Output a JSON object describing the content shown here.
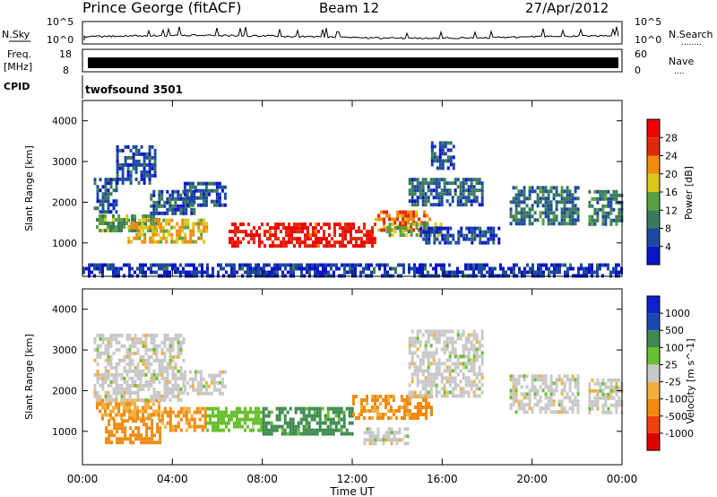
{
  "header": {
    "station": "Prince George (fitACF)",
    "beam": "Beam 12",
    "date": "27/Apr/2012"
  },
  "panels": {
    "nsky": {
      "label": "N.Sky",
      "ticks": [
        "10^5",
        "10^0"
      ],
      "right_ticks": [
        "10^5",
        "10^0"
      ],
      "right_label": "N.Search",
      "right_label_marker": "........"
    },
    "freq": {
      "label_top": "Freq.",
      "label_bottom": "[MHz]",
      "ticks": [
        "18",
        "8"
      ],
      "right_ticks": [
        "60",
        "0"
      ],
      "right_label": "Nave",
      "right_label_marker": "...."
    },
    "cpid": {
      "label": "CPID",
      "value": "twofsound 3501"
    }
  },
  "chart_data": [
    {
      "type": "heatmap",
      "quantity": "Power",
      "ylabel": "Slant Range [km]",
      "yticks": [
        1000,
        2000,
        3000,
        4000
      ],
      "ylim": [
        180,
        4500
      ],
      "colorbar": {
        "label": "Power [dB]",
        "ticks": [
          "4",
          "8",
          "12",
          "16",
          "20",
          "24",
          "28"
        ],
        "range": [
          0,
          30
        ],
        "colors": [
          "#0a14c8",
          "#1d4aa0",
          "#3a7a5a",
          "#5aa040",
          "#d8c818",
          "#f08a10",
          "#e02a0a",
          "#f00000"
        ]
      },
      "regions": [
        {
          "t": [
            0.6,
            3.4
          ],
          "r": [
            1300,
            1700
          ],
          "v": 12
        },
        {
          "t": [
            0.5,
            1.5
          ],
          "r": [
            1800,
            2600
          ],
          "v": 6
        },
        {
          "t": [
            1.5,
            3.2
          ],
          "r": [
            2500,
            3400
          ],
          "v": 5
        },
        {
          "t": [
            2.0,
            5.5
          ],
          "r": [
            1000,
            1600
          ],
          "v": 18
        },
        {
          "t": [
            3.0,
            5.0
          ],
          "r": [
            1700,
            2300
          ],
          "v": 6
        },
        {
          "t": [
            4.5,
            6.4
          ],
          "r": [
            1900,
            2500
          ],
          "v": 6
        },
        {
          "t": [
            6.5,
            13.0
          ],
          "r": [
            900,
            1500
          ],
          "v": 26
        },
        {
          "t": [
            13.0,
            15.5
          ],
          "r": [
            1300,
            1800
          ],
          "v": 22
        },
        {
          "t": [
            13.5,
            16.0
          ],
          "r": [
            1200,
            1500
          ],
          "v": 14
        },
        {
          "t": [
            14.5,
            17.8
          ],
          "r": [
            1900,
            2600
          ],
          "v": 7
        },
        {
          "t": [
            15.5,
            16.5
          ],
          "r": [
            2800,
            3500
          ],
          "v": 6
        },
        {
          "t": [
            15.0,
            18.5
          ],
          "r": [
            1000,
            1400
          ],
          "v": 5
        },
        {
          "t": [
            19.0,
            22.0
          ],
          "r": [
            1500,
            2400
          ],
          "v": 8
        },
        {
          "t": [
            22.5,
            24.0
          ],
          "r": [
            1500,
            2300
          ],
          "v": 9
        },
        {
          "t": [
            0.0,
            24.0
          ],
          "r": [
            200,
            500
          ],
          "v": 4
        }
      ]
    },
    {
      "type": "heatmap",
      "quantity": "Velocity",
      "ylabel": "Slant Range [km]",
      "xlabel": "Time UT",
      "xticks": [
        "00:00",
        "04:00",
        "08:00",
        "12:00",
        "16:00",
        "20:00",
        "00:00"
      ],
      "xlim": [
        0,
        24
      ],
      "yticks": [
        1000,
        2000,
        3000,
        4000
      ],
      "ylim": [
        180,
        4500
      ],
      "colorbar": {
        "label": "Velocity [m s^-1]",
        "ticks": [
          "-1000",
          "-500",
          "-100",
          "-25",
          "25",
          "100",
          "500",
          "1000"
        ],
        "colors": [
          "#e00000",
          "#f04010",
          "#f08a10",
          "#f0b040",
          "#c8c8c8",
          "#6ac030",
          "#3e8a50",
          "#1a4ab0",
          "#1020d0"
        ]
      },
      "regions": [
        {
          "t": [
            0.6,
            3.4
          ],
          "r": [
            1300,
            1800
          ],
          "v": -100
        },
        {
          "t": [
            1.0,
            3.5
          ],
          "r": [
            700,
            1300
          ],
          "v": -300
        },
        {
          "t": [
            0.5,
            4.5
          ],
          "r": [
            1800,
            3400
          ],
          "v": 0
        },
        {
          "t": [
            4.5,
            6.4
          ],
          "r": [
            1900,
            2500
          ],
          "v": 0
        },
        {
          "t": [
            3.5,
            5.5
          ],
          "r": [
            1000,
            1600
          ],
          "v": -150
        },
        {
          "t": [
            5.5,
            8.0
          ],
          "r": [
            1000,
            1600
          ],
          "v": 60
        },
        {
          "t": [
            8.0,
            12.0
          ],
          "r": [
            900,
            1600
          ],
          "v": 200
        },
        {
          "t": [
            12.0,
            15.5
          ],
          "r": [
            1300,
            1900
          ],
          "v": -150
        },
        {
          "t": [
            12.5,
            14.5
          ],
          "r": [
            700,
            1100
          ],
          "v": 0
        },
        {
          "t": [
            14.5,
            17.8
          ],
          "r": [
            1900,
            3500
          ],
          "v": 0
        },
        {
          "t": [
            19.0,
            22.0
          ],
          "r": [
            1500,
            2400
          ],
          "v": 0
        },
        {
          "t": [
            22.5,
            24.0
          ],
          "r": [
            1500,
            2300
          ],
          "v": 0
        }
      ]
    }
  ]
}
